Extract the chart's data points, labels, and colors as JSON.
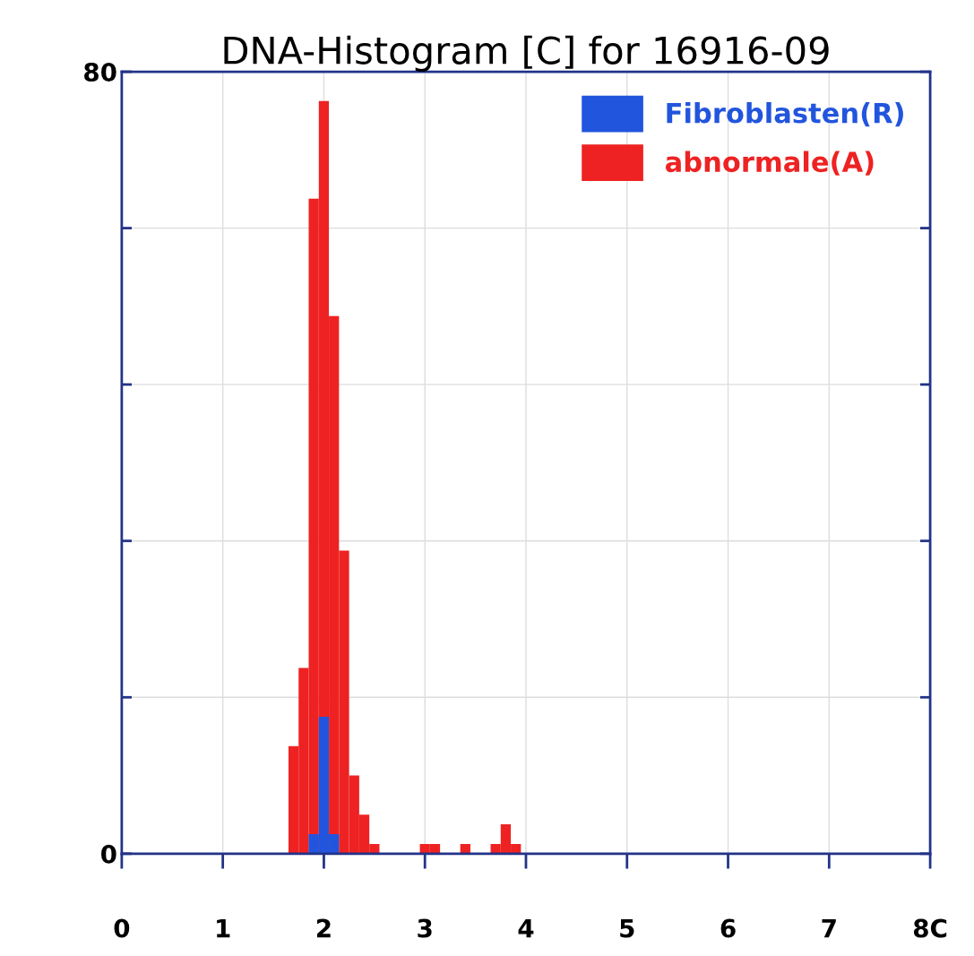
{
  "chart_data": {
    "type": "histogram",
    "title": "DNA-Histogram [C] for 16916-09",
    "bins": [
      1.65,
      1.75,
      1.85,
      1.95,
      2.05,
      2.15,
      2.25,
      2.35,
      2.45,
      2.55,
      2.65,
      2.75,
      2.85,
      2.95,
      3.05,
      3.15,
      3.25,
      3.35,
      3.45,
      3.55,
      3.65,
      3.75,
      3.85,
      3.95,
      4.05
    ],
    "series": [
      {
        "name": "abnormale(A)",
        "color": "#ee2222",
        "values": [
          11,
          19,
          67,
          77,
          55,
          31,
          8,
          4,
          1,
          0,
          0,
          0,
          0,
          1,
          1,
          0,
          0,
          1,
          0,
          0,
          1,
          3,
          1,
          0
        ]
      },
      {
        "name": "Fibroblasten(R)",
        "color": "#2255dd",
        "values": [
          0,
          0,
          2,
          14,
          2,
          0,
          0,
          0,
          0,
          0,
          0,
          0,
          0,
          0,
          0,
          0,
          0,
          0,
          0,
          0,
          0,
          0,
          0,
          0
        ]
      }
    ],
    "xlim": [
      0,
      8
    ],
    "xticks": [
      0,
      1,
      2,
      3,
      4,
      5,
      6,
      7,
      {
        "value": 8,
        "label": "8C"
      }
    ],
    "ylim": [
      0,
      80
    ],
    "yticks": [
      0,
      {
        "value": 16,
        "label": null
      },
      {
        "value": 32,
        "label": null
      },
      {
        "value": 48,
        "label": null
      },
      {
        "value": 64,
        "label": null
      },
      80
    ],
    "grid": true,
    "legend": "top right"
  }
}
